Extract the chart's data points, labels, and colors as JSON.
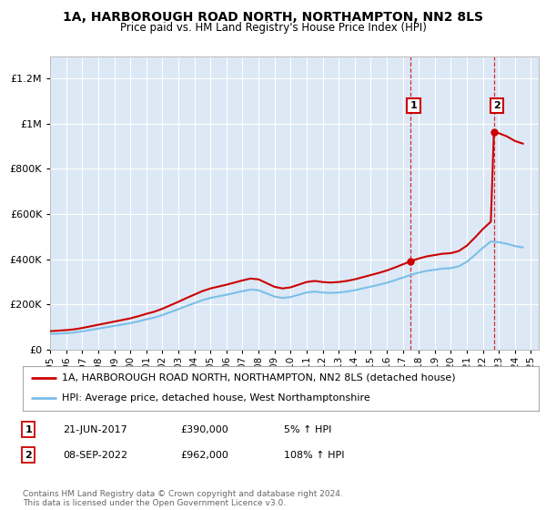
{
  "title": "1A, HARBOROUGH ROAD NORTH, NORTHAMPTON, NN2 8LS",
  "subtitle": "Price paid vs. HM Land Registry's House Price Index (HPI)",
  "legend_line1": "1A, HARBOROUGH ROAD NORTH, NORTHAMPTON, NN2 8LS (detached house)",
  "legend_line2": "HPI: Average price, detached house, West Northamptonshire",
  "annotation1_date": "21-JUN-2017",
  "annotation1_price": "£390,000",
  "annotation1_hpi": "5% ↑ HPI",
  "annotation2_date": "08-SEP-2022",
  "annotation2_price": "£962,000",
  "annotation2_hpi": "108% ↑ HPI",
  "footer": "Contains HM Land Registry data © Crown copyright and database right 2024.\nThis data is licensed under the Open Government Licence v3.0.",
  "hpi_color": "#7bbfe8",
  "price_color": "#cc0000",
  "annotation_color": "#cc0000",
  "background_color": "#ffffff",
  "plot_bg_color": "#dce8f5",
  "grid_color": "#ffffff",
  "ylim": [
    0,
    1300000
  ],
  "yticks": [
    0,
    200000,
    400000,
    600000,
    800000,
    1000000,
    1200000
  ],
  "hpi_data_x": [
    1995,
    1995.5,
    1996,
    1996.5,
    1997,
    1997.5,
    1998,
    1998.5,
    1999,
    1999.5,
    2000,
    2000.5,
    2001,
    2001.5,
    2002,
    2002.5,
    2003,
    2003.5,
    2004,
    2004.5,
    2005,
    2005.5,
    2006,
    2006.5,
    2007,
    2007.5,
    2008,
    2008.5,
    2009,
    2009.5,
    2010,
    2010.5,
    2011,
    2011.5,
    2012,
    2012.5,
    2013,
    2013.5,
    2014,
    2014.5,
    2015,
    2015.5,
    2016,
    2016.5,
    2017,
    2017.5,
    2018,
    2018.5,
    2019,
    2019.5,
    2020,
    2020.5,
    2021,
    2021.5,
    2022,
    2022.5,
    2023,
    2023.5,
    2024,
    2024.5
  ],
  "hpi_data_y": [
    68000,
    70000,
    72000,
    75000,
    80000,
    86000,
    92000,
    98000,
    104000,
    110000,
    116000,
    124000,
    133000,
    141000,
    152000,
    165000,
    178000,
    192000,
    205000,
    218000,
    228000,
    235000,
    242000,
    250000,
    258000,
    265000,
    262000,
    248000,
    234000,
    228000,
    232000,
    242000,
    252000,
    256000,
    252000,
    250000,
    252000,
    256000,
    262000,
    270000,
    278000,
    286000,
    295000,
    306000,
    318000,
    330000,
    340000,
    348000,
    353000,
    358000,
    360000,
    368000,
    388000,
    418000,
    450000,
    478000,
    475000,
    468000,
    458000,
    452000
  ],
  "sale1_year": 2017.47,
  "sale1_value": 390000,
  "sale2_year": 2022.69,
  "sale2_value": 962000,
  "xmin": 1995,
  "xmax": 2025.5,
  "xticks": [
    1995,
    1996,
    1997,
    1998,
    1999,
    2000,
    2001,
    2002,
    2003,
    2004,
    2005,
    2006,
    2007,
    2008,
    2009,
    2010,
    2011,
    2012,
    2013,
    2014,
    2015,
    2016,
    2017,
    2018,
    2019,
    2020,
    2021,
    2022,
    2023,
    2024,
    2025
  ]
}
